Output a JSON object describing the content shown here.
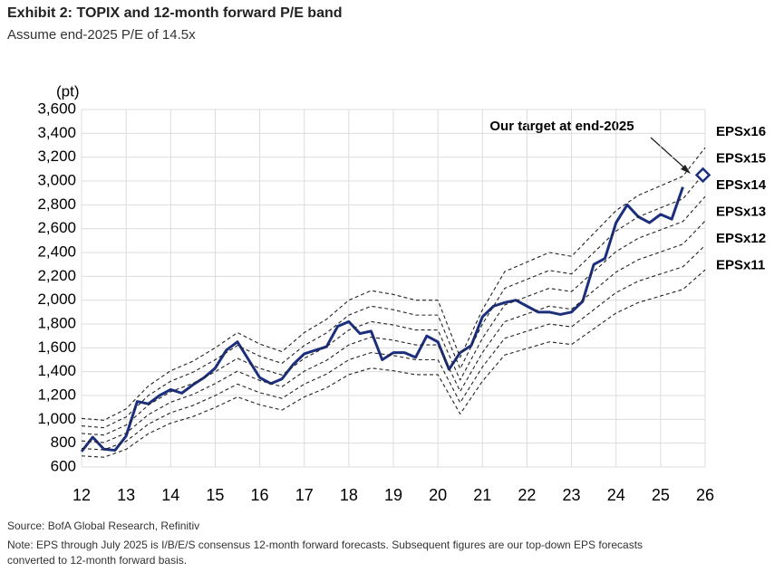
{
  "chart_data": {
    "type": "line",
    "title": "Exhibit 2: TOPIX and 12-month forward P/E band",
    "subtitle": "Assume end-2025 P/E of 14.5x",
    "y_label": "(pt)",
    "source": "Source: BofA Global Research, Refinitiv",
    "note": [
      "Note: EPS through July 2025 is I/B/E/S consensus 12-month forward forecasts. Subsequent figures are our top-down EPS forecasts",
      "converted to 12-month forward basis."
    ],
    "xlim": [
      12,
      26
    ],
    "xticks": [
      12,
      13,
      14,
      15,
      16,
      17,
      18,
      19,
      20,
      21,
      22,
      23,
      24,
      25,
      26
    ],
    "ylim": [
      600,
      3600
    ],
    "yticks": [
      {
        "value": 600,
        "label": "600"
      },
      {
        "value": 800,
        "label": "800"
      },
      {
        "value": 1000,
        "label": "1,000"
      },
      {
        "value": 1200,
        "label": "1,200"
      },
      {
        "value": 1400,
        "label": "1,400"
      },
      {
        "value": 1600,
        "label": "1,600"
      },
      {
        "value": 1800,
        "label": "1,800"
      },
      {
        "value": 2000,
        "label": "2,000"
      },
      {
        "value": 2200,
        "label": "2,200"
      },
      {
        "value": 2400,
        "label": "2,400"
      },
      {
        "value": 2600,
        "label": "2,600"
      },
      {
        "value": 2800,
        "label": "2,800"
      },
      {
        "value": 3000,
        "label": "3,000"
      },
      {
        "value": 3200,
        "label": "3,200"
      },
      {
        "value": 3400,
        "label": "3,400"
      },
      {
        "value": 3600,
        "label": "3,600"
      }
    ],
    "grid": true,
    "series": [
      {
        "color": "#1b2f7c",
        "style": "solid",
        "x": [
          12,
          12.25,
          12.5,
          12.75,
          13,
          13.25,
          13.5,
          13.75,
          14,
          14.25,
          14.5,
          14.75,
          15,
          15.25,
          15.5,
          15.75,
          16,
          16.25,
          16.5,
          16.75,
          17,
          17.25,
          17.5,
          17.75,
          18,
          18.25,
          18.5,
          18.75,
          19,
          19.25,
          19.5,
          19.75,
          20,
          20.25,
          20.5,
          20.75,
          21,
          21.25,
          21.5,
          21.75,
          22,
          22.25,
          22.5,
          22.75,
          23,
          23.25,
          23.5,
          23.75,
          24,
          24.25,
          24.5,
          24.75,
          25,
          25.25,
          25.5
        ],
        "values": [
          730,
          850,
          750,
          740,
          860,
          1150,
          1130,
          1200,
          1250,
          1220,
          1290,
          1350,
          1430,
          1580,
          1650,
          1500,
          1350,
          1300,
          1340,
          1460,
          1550,
          1580,
          1610,
          1780,
          1820,
          1720,
          1740,
          1500,
          1560,
          1560,
          1520,
          1700,
          1650,
          1420,
          1560,
          1620,
          1860,
          1950,
          1980,
          2000,
          1950,
          1900,
          1900,
          1880,
          1900,
          1990,
          2300,
          2350,
          2650,
          2800,
          2700,
          2650,
          2720,
          2680,
          2950
        ]
      },
      {
        "name": "EPSx16",
        "color": "#222222",
        "style": "dashed",
        "x": [
          12,
          12.5,
          13,
          13.5,
          14,
          14.5,
          15,
          15.5,
          16,
          16.5,
          17,
          17.5,
          18,
          18.5,
          19,
          19.5,
          20,
          20.5,
          21,
          21.5,
          22,
          22.5,
          23,
          23.5,
          24,
          24.5,
          25,
          25.5,
          26
        ],
        "values": [
          1008,
          992,
          1088,
          1280,
          1408,
          1488,
          1600,
          1728,
          1632,
          1568,
          1728,
          1840,
          2000,
          2080,
          2048,
          2000,
          2000,
          1520,
          1920,
          2240,
          2320,
          2400,
          2368,
          2560,
          2752,
          2880,
          2960,
          3040,
          3280
        ]
      },
      {
        "name": "EPSx15",
        "color": "#222222",
        "style": "dashed",
        "x": [
          12,
          12.5,
          13,
          13.5,
          14,
          14.5,
          15,
          15.5,
          16,
          16.5,
          17,
          17.5,
          18,
          18.5,
          19,
          19.5,
          20,
          20.5,
          21,
          21.5,
          22,
          22.5,
          23,
          23.5,
          24,
          24.5,
          25,
          25.5,
          26
        ],
        "values": [
          945,
          930,
          1020,
          1200,
          1320,
          1395,
          1500,
          1620,
          1530,
          1470,
          1620,
          1725,
          1875,
          1950,
          1920,
          1875,
          1875,
          1425,
          1800,
          2100,
          2175,
          2250,
          2220,
          2400,
          2580,
          2700,
          2775,
          2850,
          3075
        ]
      },
      {
        "name": "EPSx14",
        "color": "#222222",
        "style": "dashed",
        "x": [
          12,
          12.5,
          13,
          13.5,
          14,
          14.5,
          15,
          15.5,
          16,
          16.5,
          17,
          17.5,
          18,
          18.5,
          19,
          19.5,
          20,
          20.5,
          21,
          21.5,
          22,
          22.5,
          23,
          23.5,
          24,
          24.5,
          25,
          25.5,
          26
        ],
        "values": [
          882,
          868,
          952,
          1120,
          1232,
          1302,
          1400,
          1512,
          1428,
          1372,
          1512,
          1610,
          1750,
          1820,
          1792,
          1750,
          1750,
          1330,
          1680,
          1960,
          2030,
          2100,
          2072,
          2240,
          2408,
          2520,
          2590,
          2660,
          2870
        ]
      },
      {
        "name": "EPSx13",
        "color": "#222222",
        "style": "dashed",
        "x": [
          12,
          12.5,
          13,
          13.5,
          14,
          14.5,
          15,
          15.5,
          16,
          16.5,
          17,
          17.5,
          18,
          18.5,
          19,
          19.5,
          20,
          20.5,
          21,
          21.5,
          22,
          22.5,
          23,
          23.5,
          24,
          24.5,
          25,
          25.5,
          26
        ],
        "values": [
          819,
          806,
          884,
          1040,
          1144,
          1209,
          1300,
          1404,
          1326,
          1274,
          1404,
          1495,
          1625,
          1690,
          1664,
          1625,
          1625,
          1235,
          1560,
          1820,
          1885,
          1950,
          1924,
          2080,
          2236,
          2340,
          2405,
          2470,
          2665
        ]
      },
      {
        "name": "EPSx12",
        "color": "#222222",
        "style": "dashed",
        "x": [
          12,
          12.5,
          13,
          13.5,
          14,
          14.5,
          15,
          15.5,
          16,
          16.5,
          17,
          17.5,
          18,
          18.5,
          19,
          19.5,
          20,
          20.5,
          21,
          21.5,
          22,
          22.5,
          23,
          23.5,
          24,
          24.5,
          25,
          25.5,
          26
        ],
        "values": [
          756,
          744,
          816,
          960,
          1056,
          1116,
          1200,
          1296,
          1224,
          1176,
          1296,
          1380,
          1500,
          1560,
          1536,
          1500,
          1500,
          1140,
          1440,
          1680,
          1740,
          1800,
          1776,
          1920,
          2064,
          2160,
          2220,
          2280,
          2460
        ]
      },
      {
        "name": "EPSx11",
        "color": "#222222",
        "style": "dashed",
        "x": [
          12,
          12.5,
          13,
          13.5,
          14,
          14.5,
          15,
          15.5,
          16,
          16.5,
          17,
          17.5,
          18,
          18.5,
          19,
          19.5,
          20,
          20.5,
          21,
          21.5,
          22,
          22.5,
          23,
          23.5,
          24,
          24.5,
          25,
          25.5,
          26
        ],
        "values": [
          693,
          682,
          748,
          880,
          968,
          1023,
          1100,
          1188,
          1122,
          1078,
          1188,
          1265,
          1375,
          1430,
          1408,
          1375,
          1375,
          1045,
          1320,
          1540,
          1595,
          1650,
          1628,
          1760,
          1892,
          1980,
          2035,
          2090,
          2255
        ]
      }
    ],
    "target": {
      "label": "Our target at end-2025",
      "x": 25.95,
      "value": 3050,
      "color": "#1b2f7c"
    }
  }
}
